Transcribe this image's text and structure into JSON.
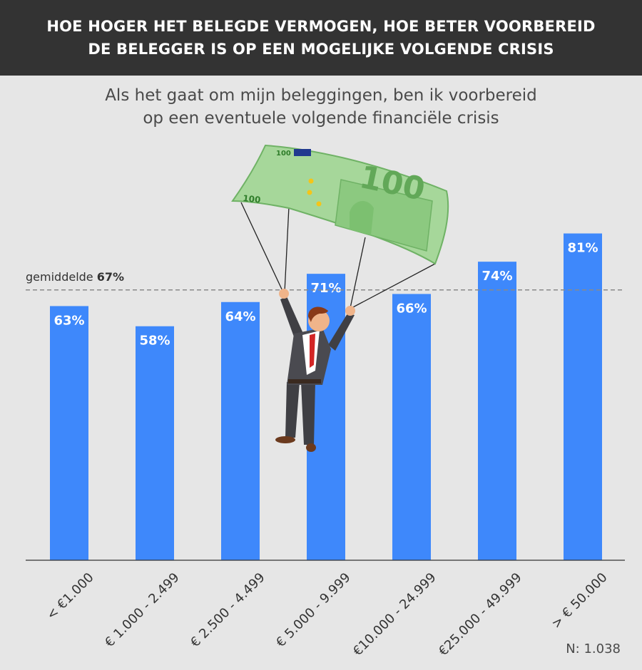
{
  "header": {
    "line1": "HOE HOGER HET BELEGDE VERMOGEN, HOE BETER VOORBEREID",
    "line2": "DE BELEGGER IS OP EEN MOGELIJKE VOLGENDE CRISIS"
  },
  "subtitle": {
    "line1": "Als het gaat om mijn beleggingen, ben ik voorbereid",
    "line2": "op een eventuele volgende financiële crisis"
  },
  "chart_data": {
    "type": "bar",
    "categories": [
      "< €1.000",
      "€ 1.000 - 2.499",
      "€ 2.500 - 4.499",
      "€ 5.000 - 9.999",
      "€10.000 - 24.999",
      "€25.000 - 49.999",
      "> € 50.000"
    ],
    "values": [
      63,
      58,
      64,
      71,
      66,
      74,
      81
    ],
    "value_labels": [
      "63%",
      "58%",
      "64%",
      "71%",
      "66%",
      "74%",
      "81%"
    ],
    "ylim": [
      0,
      100
    ],
    "bar_color": "#3e88fb",
    "average": {
      "label": "gemiddelde",
      "value": 67,
      "value_label": "67%"
    },
    "grid": false
  },
  "footnote": "N: 1.038",
  "illustration": {
    "banknote_text_small_top": "100",
    "banknote_text_small_left": "100",
    "banknote_text_large": "100"
  }
}
